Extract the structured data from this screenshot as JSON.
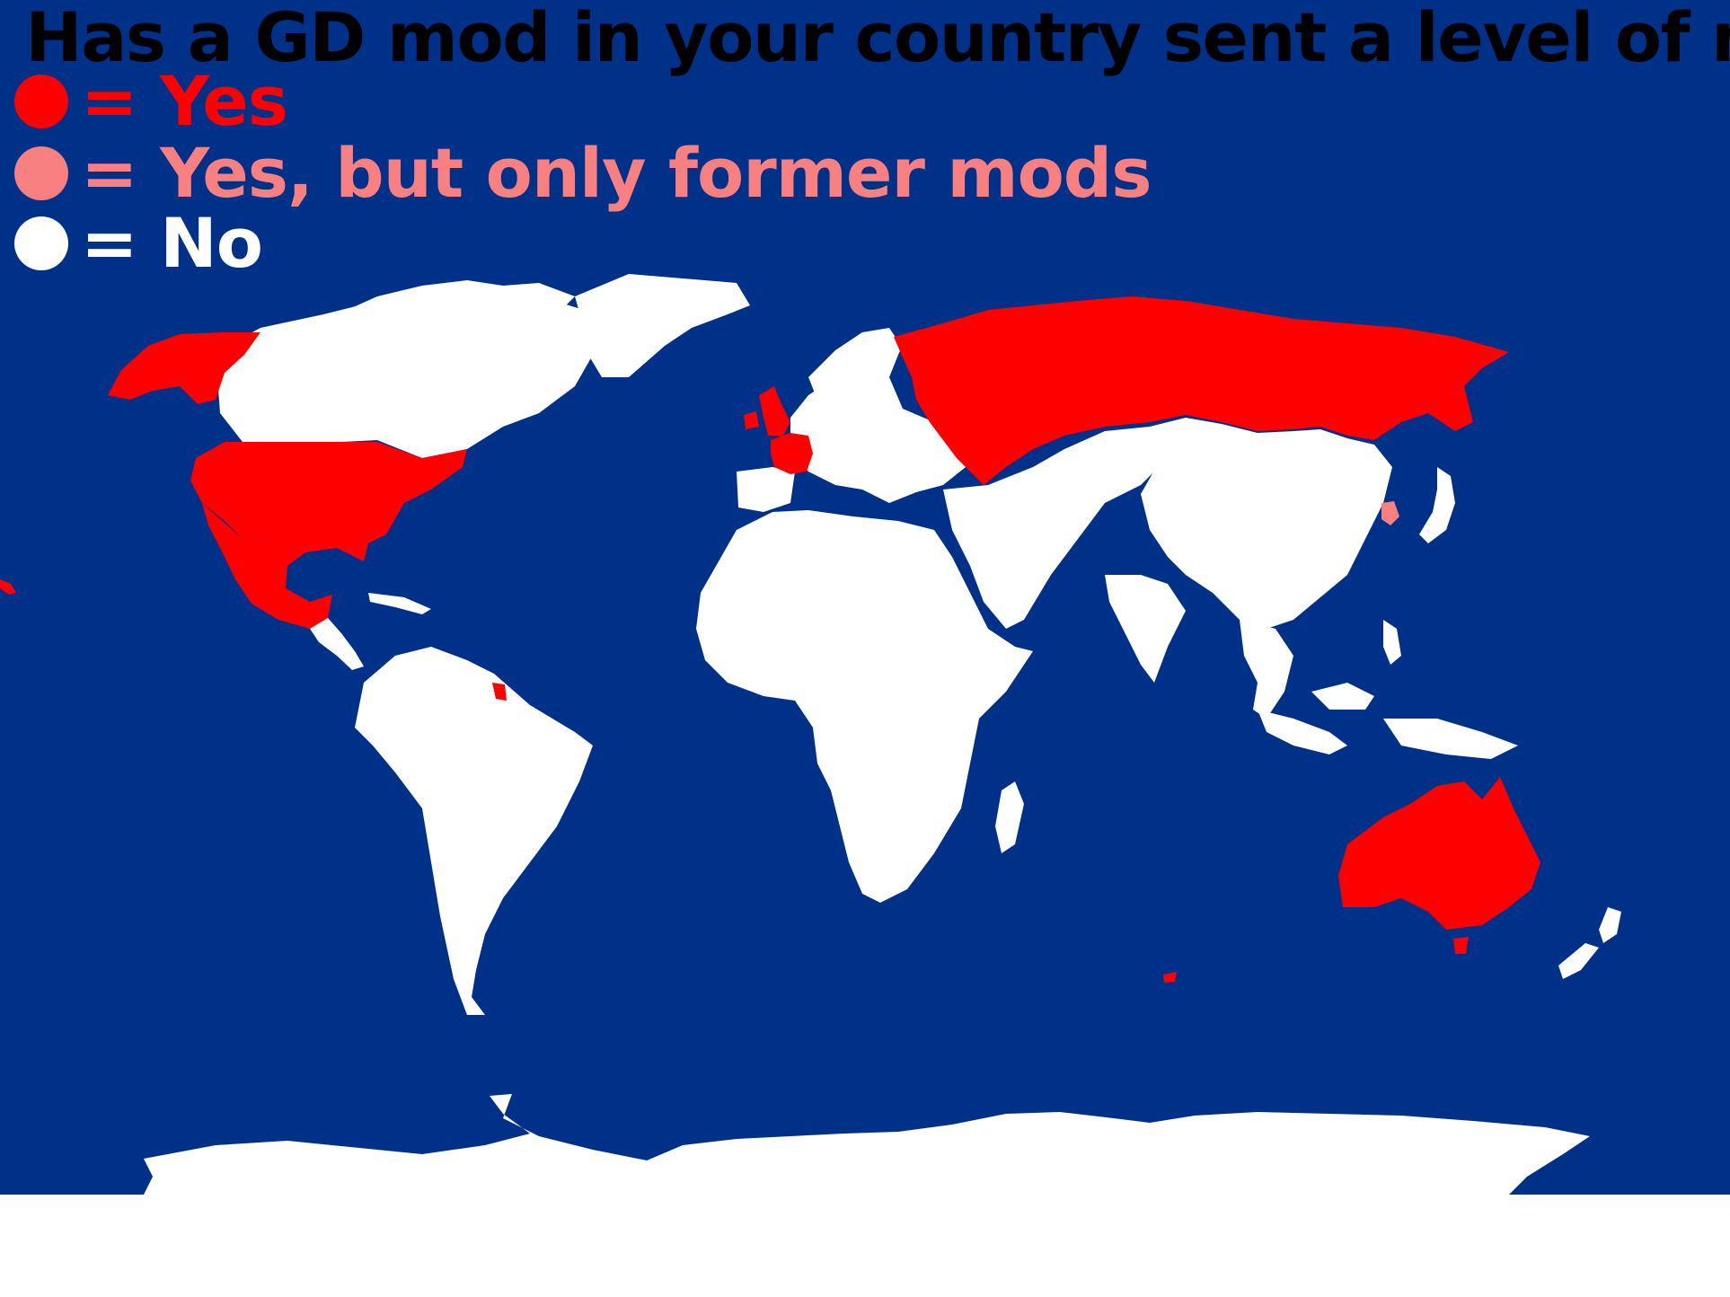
{
  "map": {
    "title": "Has a GD mod in your country sent a level of mine?",
    "title_color": "#000000",
    "ocean_color": "#003189",
    "legend": [
      {
        "label": "= Yes",
        "color": "#ff0000"
      },
      {
        "label": "= Yes, but only former mods",
        "color": "#f88080"
      },
      {
        "label": "= No",
        "color": "#ffffff"
      }
    ],
    "regions": {
      "yes": [
        "Alaska",
        "United States",
        "Mexico",
        "United Kingdom",
        "Ireland",
        "France",
        "Russia",
        "Australia",
        "French Guiana"
      ],
      "former_mods": [
        "South Korea"
      ],
      "no": [
        "Canada",
        "Greenland",
        "South America",
        "Africa",
        "Europe (rest)",
        "Middle East",
        "China",
        "India",
        "Southeast Asia",
        "Japan",
        "New Zealand",
        "Antarctica"
      ]
    }
  }
}
